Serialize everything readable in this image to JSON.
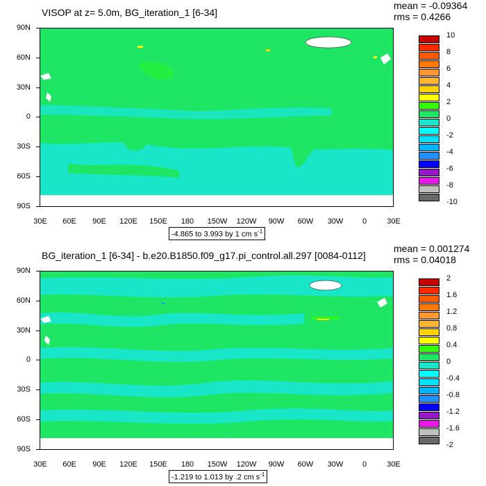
{
  "chart_data": [
    {
      "type": "heatmap",
      "title": "VISOP at z=   5.0m, BG_iteration_1 [6-34]",
      "mean_label": "mean = -0.09364",
      "rms_label": "rms = 0.4266",
      "range_label": "-4.865 to 3.993 by 1 cm s",
      "range_unit_exp": "-1",
      "yticks": [
        "90N",
        "60N",
        "30N",
        "0",
        "30S",
        "60S",
        "90S"
      ],
      "xticks": [
        "30E",
        "60E",
        "90E",
        "120E",
        "150E",
        "180",
        "150W",
        "120W",
        "90W",
        "60W",
        "30W",
        "0",
        "30E"
      ],
      "colorbar_labels": [
        "10",
        "8",
        "6",
        "4",
        "2",
        "0",
        "-2",
        "-4",
        "-6",
        "-8",
        "-10"
      ],
      "contour_levels": [
        -10,
        -9,
        -8,
        -7,
        -6,
        -5,
        -4,
        -3,
        -2,
        -1,
        0,
        1,
        2,
        3,
        4,
        5,
        6,
        7,
        8,
        9,
        10
      ],
      "colors": [
        "#696969",
        "#c0c0c0",
        "#e619e6",
        "#9619c8",
        "#0000ff",
        "#1e90ff",
        "#00b4ff",
        "#00e1ff",
        "#00ffff",
        "#19e6c8",
        "#1ee664",
        "#32ff00",
        "#ffff00",
        "#ffd200",
        "#ffb432",
        "#ff9632",
        "#ff7800",
        "#ff5a00",
        "#ff2800",
        "#e60000",
        "#c80000"
      ]
    },
    {
      "type": "heatmap",
      "title": "BG_iteration_1 [6-34] - b.e20.B1850.f09_g17.pi_control.all.297 [0084-0112]",
      "mean_label": "mean = 0.001274",
      "rms_label": "rms = 0.04018",
      "range_label": "-1.219 to 1.013 by .2 cm s",
      "range_unit_exp": "-1",
      "yticks": [
        "90N",
        "60N",
        "30N",
        "0",
        "30S",
        "60S",
        "90S"
      ],
      "xticks": [
        "30E",
        "60E",
        "90E",
        "120E",
        "150E",
        "180",
        "150W",
        "120W",
        "90W",
        "60W",
        "30W",
        "0",
        "30E"
      ],
      "colorbar_labels": [
        "2",
        "1.6",
        "1.2",
        "0.8",
        "0.4",
        "0",
        "-0.4",
        "-0.8",
        "-1.2",
        "-1.6",
        "-2"
      ],
      "contour_levels": [
        -2,
        -1.8,
        -1.6,
        -1.4,
        -1.2,
        -1,
        -0.8,
        -0.6,
        -0.4,
        -0.2,
        0,
        0.2,
        0.4,
        0.6,
        0.8,
        1,
        1.2,
        1.4,
        1.6,
        1.8,
        2
      ],
      "colors": [
        "#696969",
        "#c0c0c0",
        "#e619e6",
        "#9619c8",
        "#0000ff",
        "#1e90ff",
        "#00b4ff",
        "#00e1ff",
        "#00ffff",
        "#19e6c8",
        "#1ee664",
        "#32ff00",
        "#ffff00",
        "#ffd200",
        "#ffb432",
        "#ff9632",
        "#ff7800",
        "#ff5a00",
        "#ff2800",
        "#e60000",
        "#c80000"
      ]
    }
  ]
}
